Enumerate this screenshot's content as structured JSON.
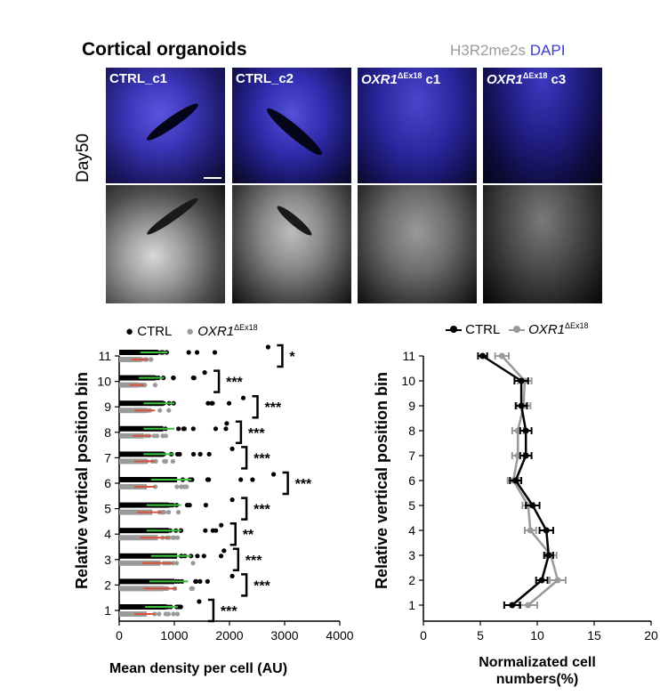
{
  "figure": {
    "title": "Cortical organoids",
    "stain_h3": "H3R2me2s",
    "stain_dapi": "DAPI",
    "row_label": "Day50",
    "panels": [
      {
        "name": "CTRL_c1",
        "italic": "",
        "sup": "",
        "suffix": ""
      },
      {
        "name": "CTRL_c2",
        "italic": "",
        "sup": "",
        "suffix": ""
      },
      {
        "name": "",
        "italic": "OXR1",
        "sup": "ΔEx18",
        "suffix": " c1"
      },
      {
        "name": "",
        "italic": "OXR1",
        "sup": "ΔEx18",
        "suffix": " c3"
      }
    ]
  },
  "legend": {
    "ctrl": "CTRL",
    "oxr1": "OXR1",
    "oxr1_sup": "ΔEx18"
  },
  "colors": {
    "ctrl": "#000000",
    "oxr1": "#9a9a9a",
    "ctrl_mean": "#3cc23c",
    "oxr1_mean": "#d9533a",
    "dapi": "#3a3ad0"
  },
  "chart_data": [
    {
      "type": "scatter",
      "xlabel": "Mean density per cell (AU)",
      "ylabel": "Relative vertical position bin",
      "xlim": [
        0,
        4000
      ],
      "xticks": [
        0,
        1000,
        2000,
        3000,
        4000
      ],
      "categories": [
        "1",
        "2",
        "3",
        "4",
        "5",
        "6",
        "7",
        "8",
        "9",
        "10",
        "11"
      ],
      "series": [
        {
          "name": "CTRL",
          "mean": [
            850,
            1000,
            1050,
            900,
            900,
            1050,
            800,
            800,
            800,
            650,
            700
          ],
          "max": [
            1450,
            2050,
            1900,
            1850,
            2050,
            2800,
            2050,
            1950,
            2250,
            1550,
            2700
          ]
        },
        {
          "name": "OXR1ΔEx18",
          "mean": [
            500,
            800,
            750,
            700,
            600,
            500,
            500,
            450,
            500,
            350,
            400
          ],
          "max": [
            1150,
            1350,
            1350,
            1200,
            1100,
            1250,
            1000,
            900,
            1000,
            750,
            650
          ]
        }
      ],
      "significance": [
        "***",
        "***",
        "***",
        "**",
        "***",
        "***",
        "***",
        "***",
        "***",
        "***",
        "*"
      ],
      "legend": "top"
    },
    {
      "type": "line",
      "xlabel": "Normalizated cell numbers(%)",
      "ylabel": "Relative vertical position bin",
      "xlim": [
        0,
        20
      ],
      "xticks": [
        0,
        5,
        10,
        15,
        20
      ],
      "categories": [
        "1",
        "2",
        "3",
        "4",
        "5",
        "6",
        "7",
        "8",
        "9",
        "10",
        "11"
      ],
      "series": [
        {
          "name": "CTRL",
          "values": [
            7.8,
            10.4,
            11.0,
            10.8,
            9.6,
            8.1,
            9.0,
            9.0,
            8.6,
            8.6,
            5.2
          ],
          "err": [
            0.7,
            0.5,
            0.4,
            0.6,
            0.6,
            0.5,
            0.5,
            0.5,
            0.5,
            0.6,
            0.4
          ]
        },
        {
          "name": "OXR1ΔEx18",
          "values": [
            9.2,
            11.8,
            11.2,
            9.4,
            9.2,
            7.9,
            8.3,
            8.3,
            8.8,
            8.9,
            6.9
          ],
          "err": [
            0.8,
            0.7,
            0.5,
            0.5,
            0.5,
            0.5,
            0.5,
            0.5,
            0.6,
            0.6,
            0.6
          ]
        }
      ],
      "legend": "top"
    }
  ]
}
